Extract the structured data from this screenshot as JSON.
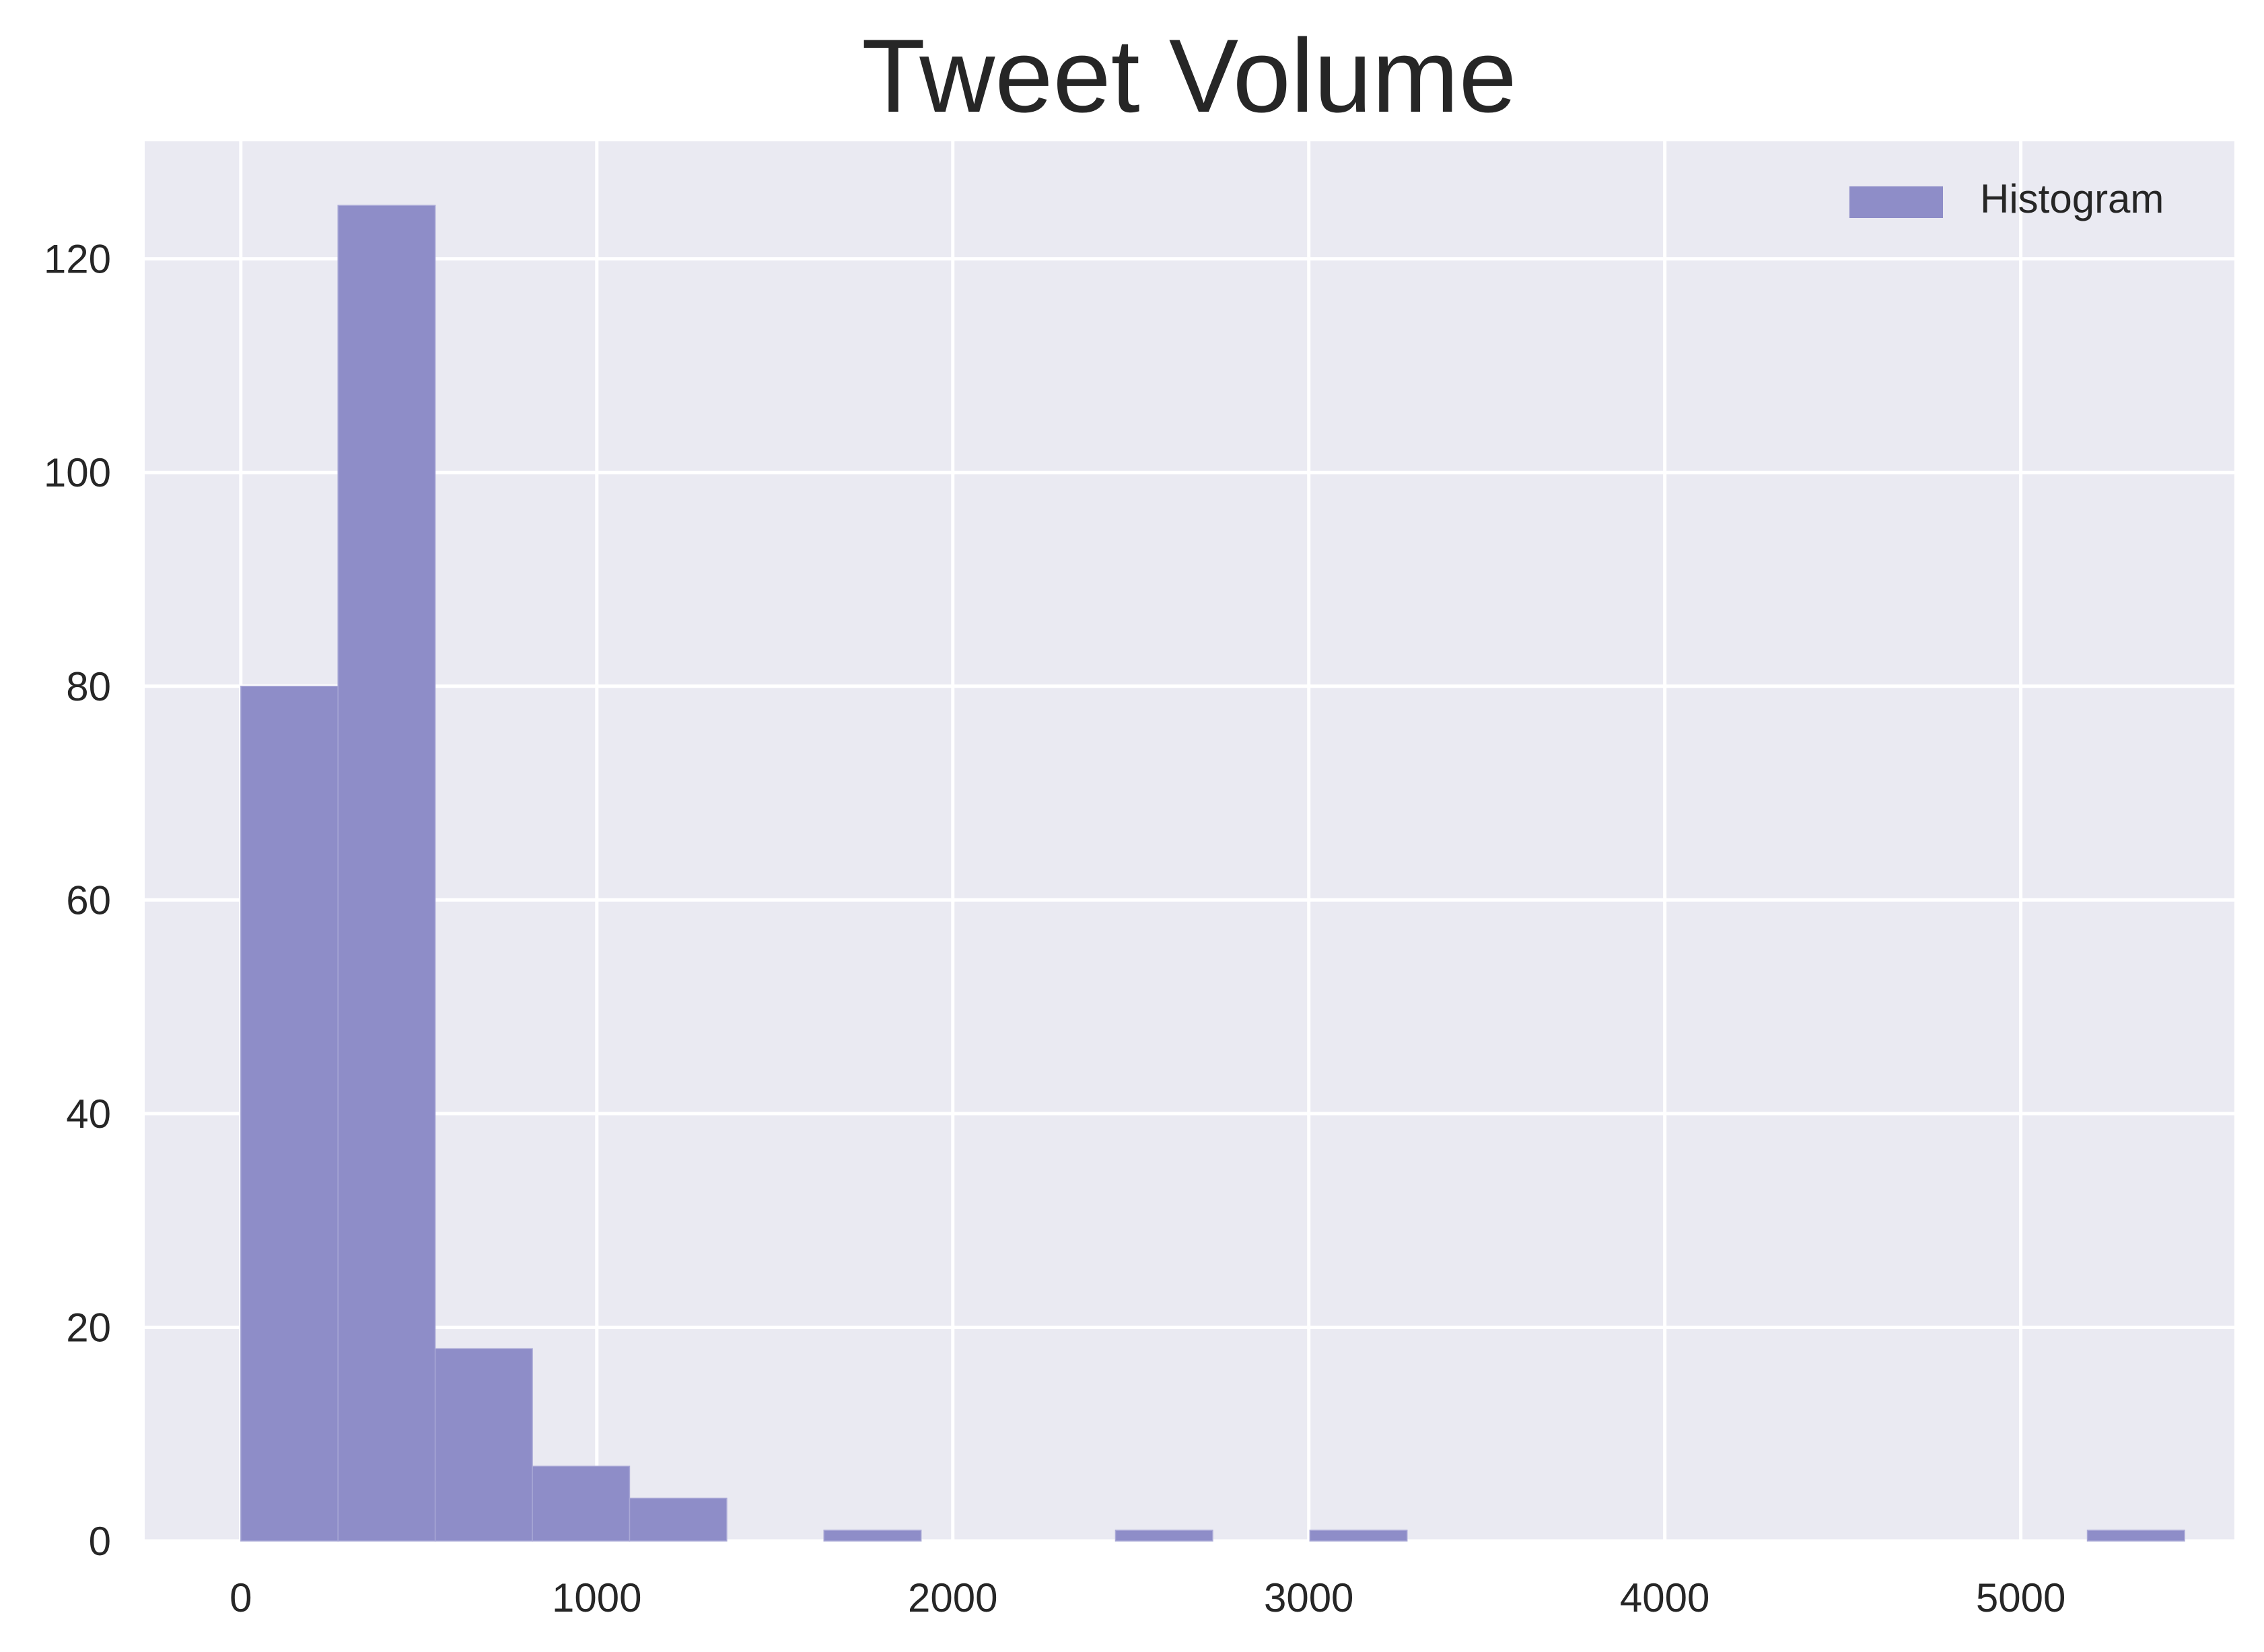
{
  "chart_data": {
    "type": "bar",
    "subtype": "histogram",
    "title": "Tweet Volume",
    "xlabel": "",
    "ylabel": "",
    "x_ticks": [
      0,
      1000,
      2000,
      3000,
      4000,
      5000
    ],
    "y_ticks": [
      0,
      20,
      40,
      60,
      80,
      100,
      120
    ],
    "xlim": [
      -270,
      5600
    ],
    "ylim": [
      0,
      131
    ],
    "grid": true,
    "legend": {
      "position": "top-right",
      "entries": [
        "Histogram"
      ]
    },
    "series": [
      {
        "name": "Histogram",
        "color": "#8e8dc8",
        "bins": [
          {
            "x0": 0,
            "x1": 273,
            "count": 80
          },
          {
            "x0": 273,
            "x1": 546,
            "count": 125
          },
          {
            "x0": 546,
            "x1": 819,
            "count": 18
          },
          {
            "x0": 819,
            "x1": 1092,
            "count": 7
          },
          {
            "x0": 1092,
            "x1": 1365,
            "count": 4
          },
          {
            "x0": 1365,
            "x1": 1638,
            "count": 0
          },
          {
            "x0": 1638,
            "x1": 1911,
            "count": 1
          },
          {
            "x0": 1911,
            "x1": 2184,
            "count": 0
          },
          {
            "x0": 2184,
            "x1": 2457,
            "count": 0
          },
          {
            "x0": 2457,
            "x1": 2730,
            "count": 1
          },
          {
            "x0": 2730,
            "x1": 3003,
            "count": 0
          },
          {
            "x0": 3003,
            "x1": 3276,
            "count": 1
          },
          {
            "x0": 3276,
            "x1": 3549,
            "count": 0
          },
          {
            "x0": 3549,
            "x1": 3822,
            "count": 0
          },
          {
            "x0": 3822,
            "x1": 4095,
            "count": 0
          },
          {
            "x0": 4095,
            "x1": 4368,
            "count": 0
          },
          {
            "x0": 4368,
            "x1": 4641,
            "count": 0
          },
          {
            "x0": 4641,
            "x1": 4914,
            "count": 0
          },
          {
            "x0": 4914,
            "x1": 5187,
            "count": 0
          },
          {
            "x0": 5187,
            "x1": 5460,
            "count": 1
          }
        ]
      }
    ],
    "colors": {
      "background": "#eaeaf2",
      "grid": "#ffffff",
      "text": "#262626"
    }
  }
}
